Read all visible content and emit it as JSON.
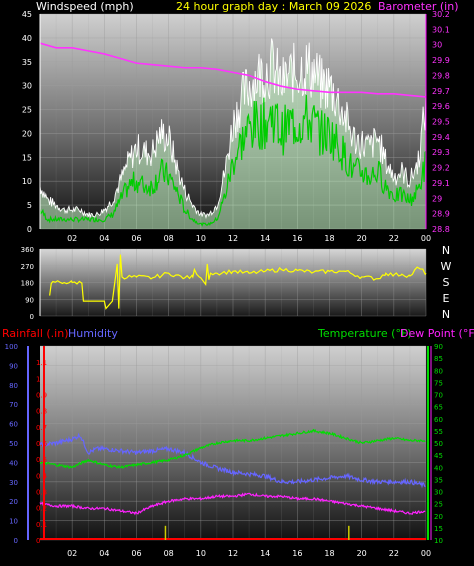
{
  "header": {
    "left_label": "Windspeed (mph)",
    "title": "24 hour graph day : March 09 2026",
    "right_label": "Barometer (in)"
  },
  "x_ticks": [
    "02",
    "04",
    "06",
    "08",
    "10",
    "12",
    "14",
    "16",
    "18",
    "20",
    "22",
    "00"
  ],
  "colors": {
    "windspeed": "#ffffff",
    "gust": "#ffffff",
    "avg_wind": "#00cc00",
    "wind_fill": "#ccffcc",
    "barometer": "#ff33ff",
    "direction": "#ffff00",
    "temperature": "#00dd00",
    "humidity": "#6666ff",
    "dewpoint": "#ff22ff",
    "rainfall": "#ff0000",
    "rain_bar": "#cccc00",
    "axis_left": "#ffffff",
    "axis_right": "#ff00ff"
  },
  "panel_wind": {
    "y_ticks": [
      "0",
      "5",
      "10",
      "15",
      "20",
      "25",
      "30",
      "35",
      "40",
      "45"
    ],
    "baro_ticks": [
      "28.8",
      "28.9",
      "29",
      "29.1",
      "29.2",
      "29.3",
      "29.4",
      "29.5",
      "29.6",
      "29.7",
      "29.8",
      "29.9",
      "30",
      "30.1",
      "30.2"
    ]
  },
  "panel_dir": {
    "y_ticks": [
      "0",
      "90",
      "180",
      "270",
      "360"
    ],
    "compass": [
      "N",
      "W",
      "S",
      "E",
      "N"
    ]
  },
  "panel_bottom": {
    "labels": {
      "rainfall": "Rainfall (.in)",
      "humidity": "Humidity",
      "temperature": "Temperature (°F)",
      "dewpoint": "Dew Point (°F)"
    },
    "humidity_ticks": [
      "0",
      "10",
      "20",
      "30",
      "40",
      "50",
      "60",
      "70",
      "80",
      "90",
      "100"
    ],
    "rain_ticks": [
      "0",
      "0.1",
      "0.2",
      "0.3",
      "0.4",
      "0.5",
      "0.6",
      "0.7",
      "0.8",
      "0.9",
      "1",
      "1.1"
    ],
    "temp_ticks": [
      "10",
      "15",
      "20",
      "25",
      "30",
      "35",
      "40",
      "45",
      "50",
      "55",
      "60",
      "65",
      "70",
      "75",
      "80",
      "85",
      "90"
    ]
  },
  "chart_data": [
    {
      "type": "line",
      "title": "24 hour graph day : March 09 2026",
      "xlabel": "",
      "ylabel": "Windspeed (mph)",
      "xlim": [
        0,
        24
      ],
      "ylim": [
        0,
        45
      ],
      "y2label": "Barometer (in)",
      "y2lim": [
        28.8,
        30.2
      ],
      "series": [
        {
          "name": "Windspeed (mph)",
          "axis": "left",
          "kind": "gust",
          "x": [
            0,
            0.5,
            1,
            1.5,
            2,
            2.5,
            3,
            3.5,
            4,
            4.5,
            5,
            5.5,
            6,
            6.5,
            7,
            7.5,
            8,
            8.5,
            9,
            9.5,
            10,
            10.5,
            11,
            11.5,
            12,
            12.5,
            13,
            13.5,
            14,
            14.5,
            15,
            15.5,
            16,
            16.5,
            17,
            17.5,
            18,
            18.5,
            19,
            19.5,
            20,
            20.5,
            21,
            21.5,
            22,
            22.5,
            23,
            23.5,
            24
          ],
          "y": [
            9,
            6,
            5,
            4,
            4,
            4,
            3,
            3,
            4,
            6,
            10,
            14,
            17,
            16,
            16,
            20,
            19,
            13,
            8,
            5,
            3,
            3,
            5,
            12,
            22,
            27,
            30,
            32,
            33,
            34,
            30,
            32,
            33,
            34,
            33,
            30,
            30,
            27,
            23,
            19,
            18,
            17,
            19,
            14,
            11,
            12,
            10,
            14,
            26
          ]
        },
        {
          "name": "Average",
          "axis": "left",
          "kind": "avg",
          "x": [
            0,
            0.5,
            1,
            1.5,
            2,
            2.5,
            3,
            3.5,
            4,
            4.5,
            5,
            5.5,
            6,
            6.5,
            7,
            7.5,
            8,
            8.5,
            9,
            9.5,
            10,
            10.5,
            11,
            11.5,
            12,
            12.5,
            13,
            13.5,
            14,
            14.5,
            15,
            15.5,
            16,
            16.5,
            17,
            17.5,
            18,
            18.5,
            19,
            19.5,
            20,
            20.5,
            21,
            21.5,
            22,
            22.5,
            23,
            23.5,
            24
          ],
          "y": [
            4,
            2,
            2,
            2,
            2,
            2,
            2,
            2,
            2,
            3,
            6,
            9,
            10,
            9,
            9,
            12,
            11,
            8,
            4,
            2,
            1,
            1,
            2,
            7,
            14,
            18,
            21,
            22,
            22,
            24,
            20,
            22,
            22,
            23,
            22,
            20,
            20,
            18,
            15,
            12,
            12,
            11,
            12,
            9,
            7,
            7,
            6,
            8,
            14
          ]
        },
        {
          "name": "Barometer (in)",
          "axis": "right",
          "kind": "baro",
          "x": [
            0,
            1,
            2,
            3,
            4,
            5,
            6,
            7,
            8,
            9,
            10,
            11,
            12,
            13,
            14,
            15,
            16,
            17,
            18,
            19,
            20,
            21,
            22,
            23,
            24
          ],
          "y": [
            30.01,
            29.98,
            29.98,
            29.96,
            29.94,
            29.91,
            29.88,
            29.87,
            29.86,
            29.85,
            29.85,
            29.84,
            29.82,
            29.8,
            29.76,
            29.73,
            29.71,
            29.7,
            29.69,
            29.69,
            29.69,
            29.68,
            29.68,
            29.67,
            29.66
          ]
        }
      ]
    },
    {
      "type": "line",
      "title": "",
      "xlabel": "",
      "ylabel": "",
      "xlim": [
        0,
        24
      ],
      "ylim": [
        0,
        360
      ],
      "series": [
        {
          "name": "Wind Direction",
          "x": [
            0.6,
            0.7,
            0.8,
            1.5,
            2.0,
            2.6,
            2.7,
            3.5,
            4.0,
            4.1,
            4.5,
            4.8,
            4.9,
            5.0,
            5.1,
            6.0,
            7.0,
            8.0,
            9.0,
            9.5,
            9.6,
            10.0,
            10.3,
            10.4,
            10.5,
            10.6,
            11,
            12,
            13,
            14,
            15,
            16,
            17,
            18,
            19,
            20,
            21,
            21.5,
            22,
            22.5,
            23,
            23.5,
            24
          ],
          "y": [
            110,
            175,
            185,
            180,
            180,
            180,
            80,
            80,
            80,
            40,
            80,
            280,
            40,
            330,
            210,
            210,
            205,
            230,
            205,
            210,
            250,
            205,
            170,
            280,
            195,
            230,
            230,
            240,
            230,
            240,
            250,
            245,
            235,
            240,
            240,
            210,
            200,
            230,
            220,
            225,
            215,
            260,
            230
          ]
        }
      ]
    },
    {
      "type": "line",
      "title": "",
      "xlabel": "",
      "ylabel": "Humidity",
      "xlim": [
        0,
        24
      ],
      "ylim": [
        0,
        100
      ],
      "y2label": "Temperature (°F)",
      "y2lim": [
        10,
        90
      ],
      "series": [
        {
          "name": "Humidity",
          "axis": "humidity",
          "x": [
            0,
            1,
            2,
            2.5,
            3,
            3.5,
            4,
            5,
            6,
            7,
            8,
            9,
            10,
            11,
            12,
            13,
            14,
            15,
            16,
            17,
            18,
            19,
            20,
            21,
            22,
            23,
            24
          ],
          "y": [
            49,
            50,
            52,
            54,
            45,
            47,
            47,
            46,
            45,
            46,
            47,
            45,
            40,
            37,
            35,
            34,
            33,
            30,
            30,
            31,
            32,
            33,
            31,
            30,
            30,
            30,
            28
          ]
        },
        {
          "name": "Temperature (°F)",
          "axis": "temp",
          "x": [
            0,
            1,
            2,
            3,
            4,
            5,
            6,
            7,
            8,
            9,
            10,
            11,
            12,
            13,
            14,
            15,
            16,
            17,
            18,
            19,
            20,
            21,
            22,
            23,
            24
          ],
          "y": [
            42,
            41,
            40,
            43,
            41,
            40,
            41,
            42,
            43,
            45,
            48,
            50,
            51,
            51,
            52,
            53,
            54,
            55,
            54,
            52,
            50,
            51,
            52,
            51,
            51
          ]
        },
        {
          "name": "Dew Point (°F)",
          "axis": "temp",
          "x": [
            0,
            1,
            2,
            3,
            4,
            5,
            6,
            7,
            8,
            9,
            10,
            11,
            12,
            13,
            14,
            15,
            16,
            17,
            18,
            19,
            20,
            21,
            22,
            23,
            24
          ],
          "y": [
            25,
            24,
            24,
            23,
            23,
            22,
            21,
            24,
            26,
            27,
            27,
            28,
            28,
            29,
            28,
            28,
            27,
            27,
            26,
            25,
            24,
            23,
            22,
            21,
            22
          ]
        },
        {
          "name": "Rainfall (.in)",
          "axis": "rain",
          "x": [
            0,
            24
          ],
          "y": [
            0,
            0
          ]
        },
        {
          "name": "Rain rate bars",
          "axis": "rain",
          "kind": "bars",
          "x": [
            7.8,
            19.2
          ],
          "y": [
            0.1,
            0.1
          ]
        }
      ]
    }
  ]
}
